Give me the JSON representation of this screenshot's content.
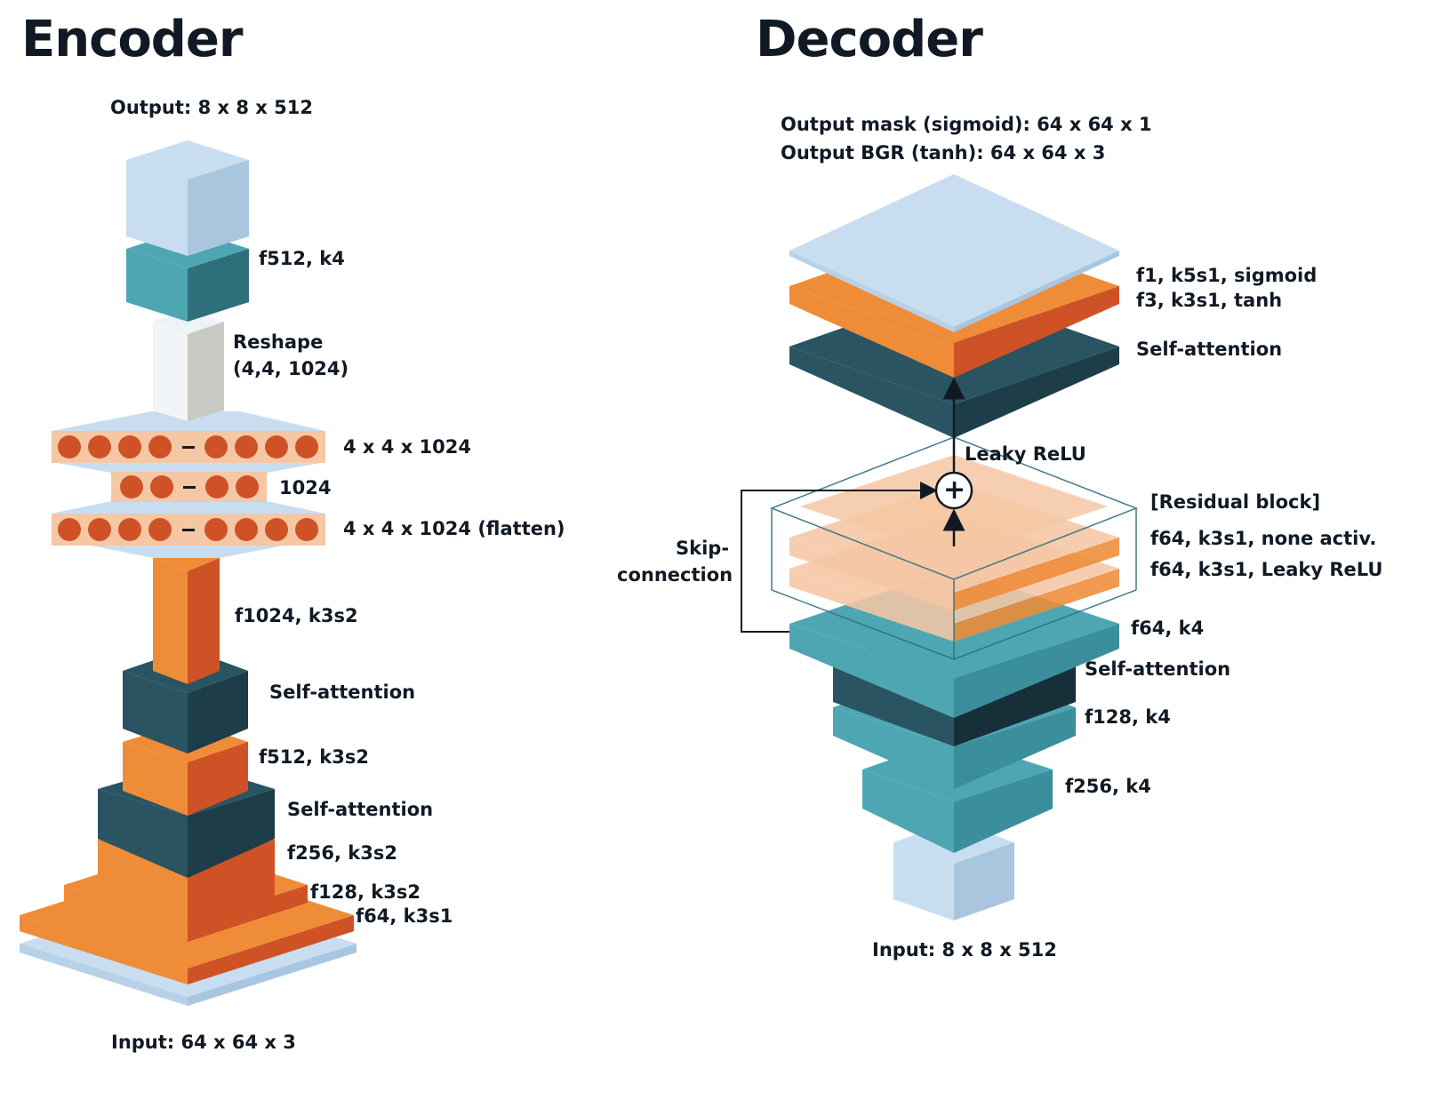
{
  "colors": {
    "orange": "#ef8c38",
    "orange_dark": "#cf5226",
    "teal": "#4fa6b3",
    "teal_dark": "#2f6f7c",
    "navy": "#2a5461",
    "navy_dark": "#1d3e49",
    "lightblue": "#c8def0",
    "peach": "#f5c7a5",
    "text": "#111a24"
  },
  "encoder": {
    "title": "Encoder",
    "output_label": "Output: 8 x 8 x 512",
    "input_label": "Input: 64 x 64 x 3",
    "layers": {
      "conv512": "f512, k4",
      "reshape_line1": "Reshape",
      "reshape_line2": "(4,4, 1024)",
      "dense_top": "4 x 4 x 1024",
      "dense_mid": "1024",
      "dense_flatten": "4 x 4 x 1024 (flatten)",
      "f1024": "f1024, k3s2",
      "self_attention_1": "Self-attention",
      "f512": "f512, k3s2",
      "self_attention_2": "Self-attention",
      "f256": "f256, k3s2",
      "f128": "f128, k3s2",
      "f64": "f64, k3s1"
    },
    "dense_dash": "–"
  },
  "decoder": {
    "title": "Decoder",
    "output_mask": "Output mask (sigmoid): 64 x 64 x 1",
    "output_bgr": "Output BGR (tanh): 64 x 64 x 3",
    "input_label": "Input: 8 x 8 x 512",
    "layers": {
      "f1": "f1, k5s1, sigmoid",
      "f3": "f3, k3s1, tanh",
      "self_attention_top": "Self-attention",
      "leaky_relu": "Leaky ReLU",
      "residual_block": "[Residual block]",
      "res_none": "f64, k3s1, none activ.",
      "res_leaky": "f64, k3s1, Leaky ReLU",
      "f64": "f64, k4",
      "self_attention_mid": "Self-attention",
      "f128": "f128, k4",
      "f256": "f256, k4"
    },
    "skip_line1": "Skip-",
    "skip_line2": "connection",
    "plus_symbol": "+"
  }
}
